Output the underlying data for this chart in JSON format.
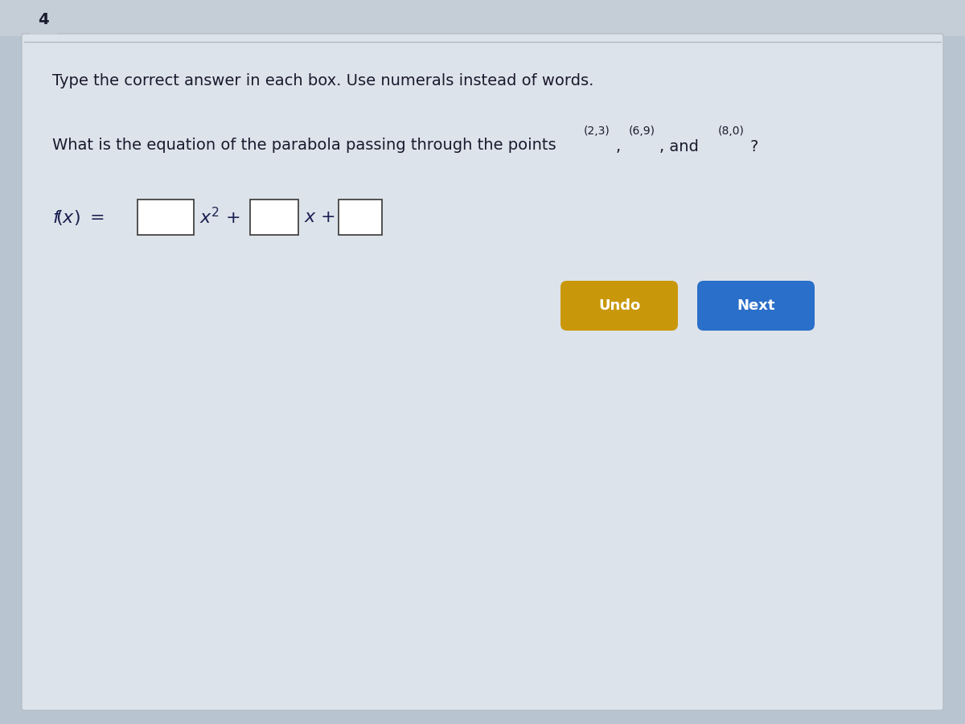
{
  "question_number": "4",
  "instruction": "Type the correct answer in each box. Use numerals instead of words.",
  "question_text": "What is the equation of the parabola passing through the points",
  "pt1": "(2,3)",
  "pt2": "(6,9)",
  "pt3": "(8,0)",
  "bg_outer": "#b8c4d0",
  "bg_inner": "#dde3ea",
  "header_bg": "#c5cdd6",
  "divider_color": "#b0bac4",
  "box_bg": "#ffffff",
  "box_edge": "#444444",
  "text_color": "#1a1a2e",
  "italic_color": "#1a2050",
  "undo_color": "#c9980a",
  "next_color": "#2a6fc9",
  "btn_text_color": "#ffffff",
  "figsize": [
    12,
    9
  ],
  "dpi": 100
}
